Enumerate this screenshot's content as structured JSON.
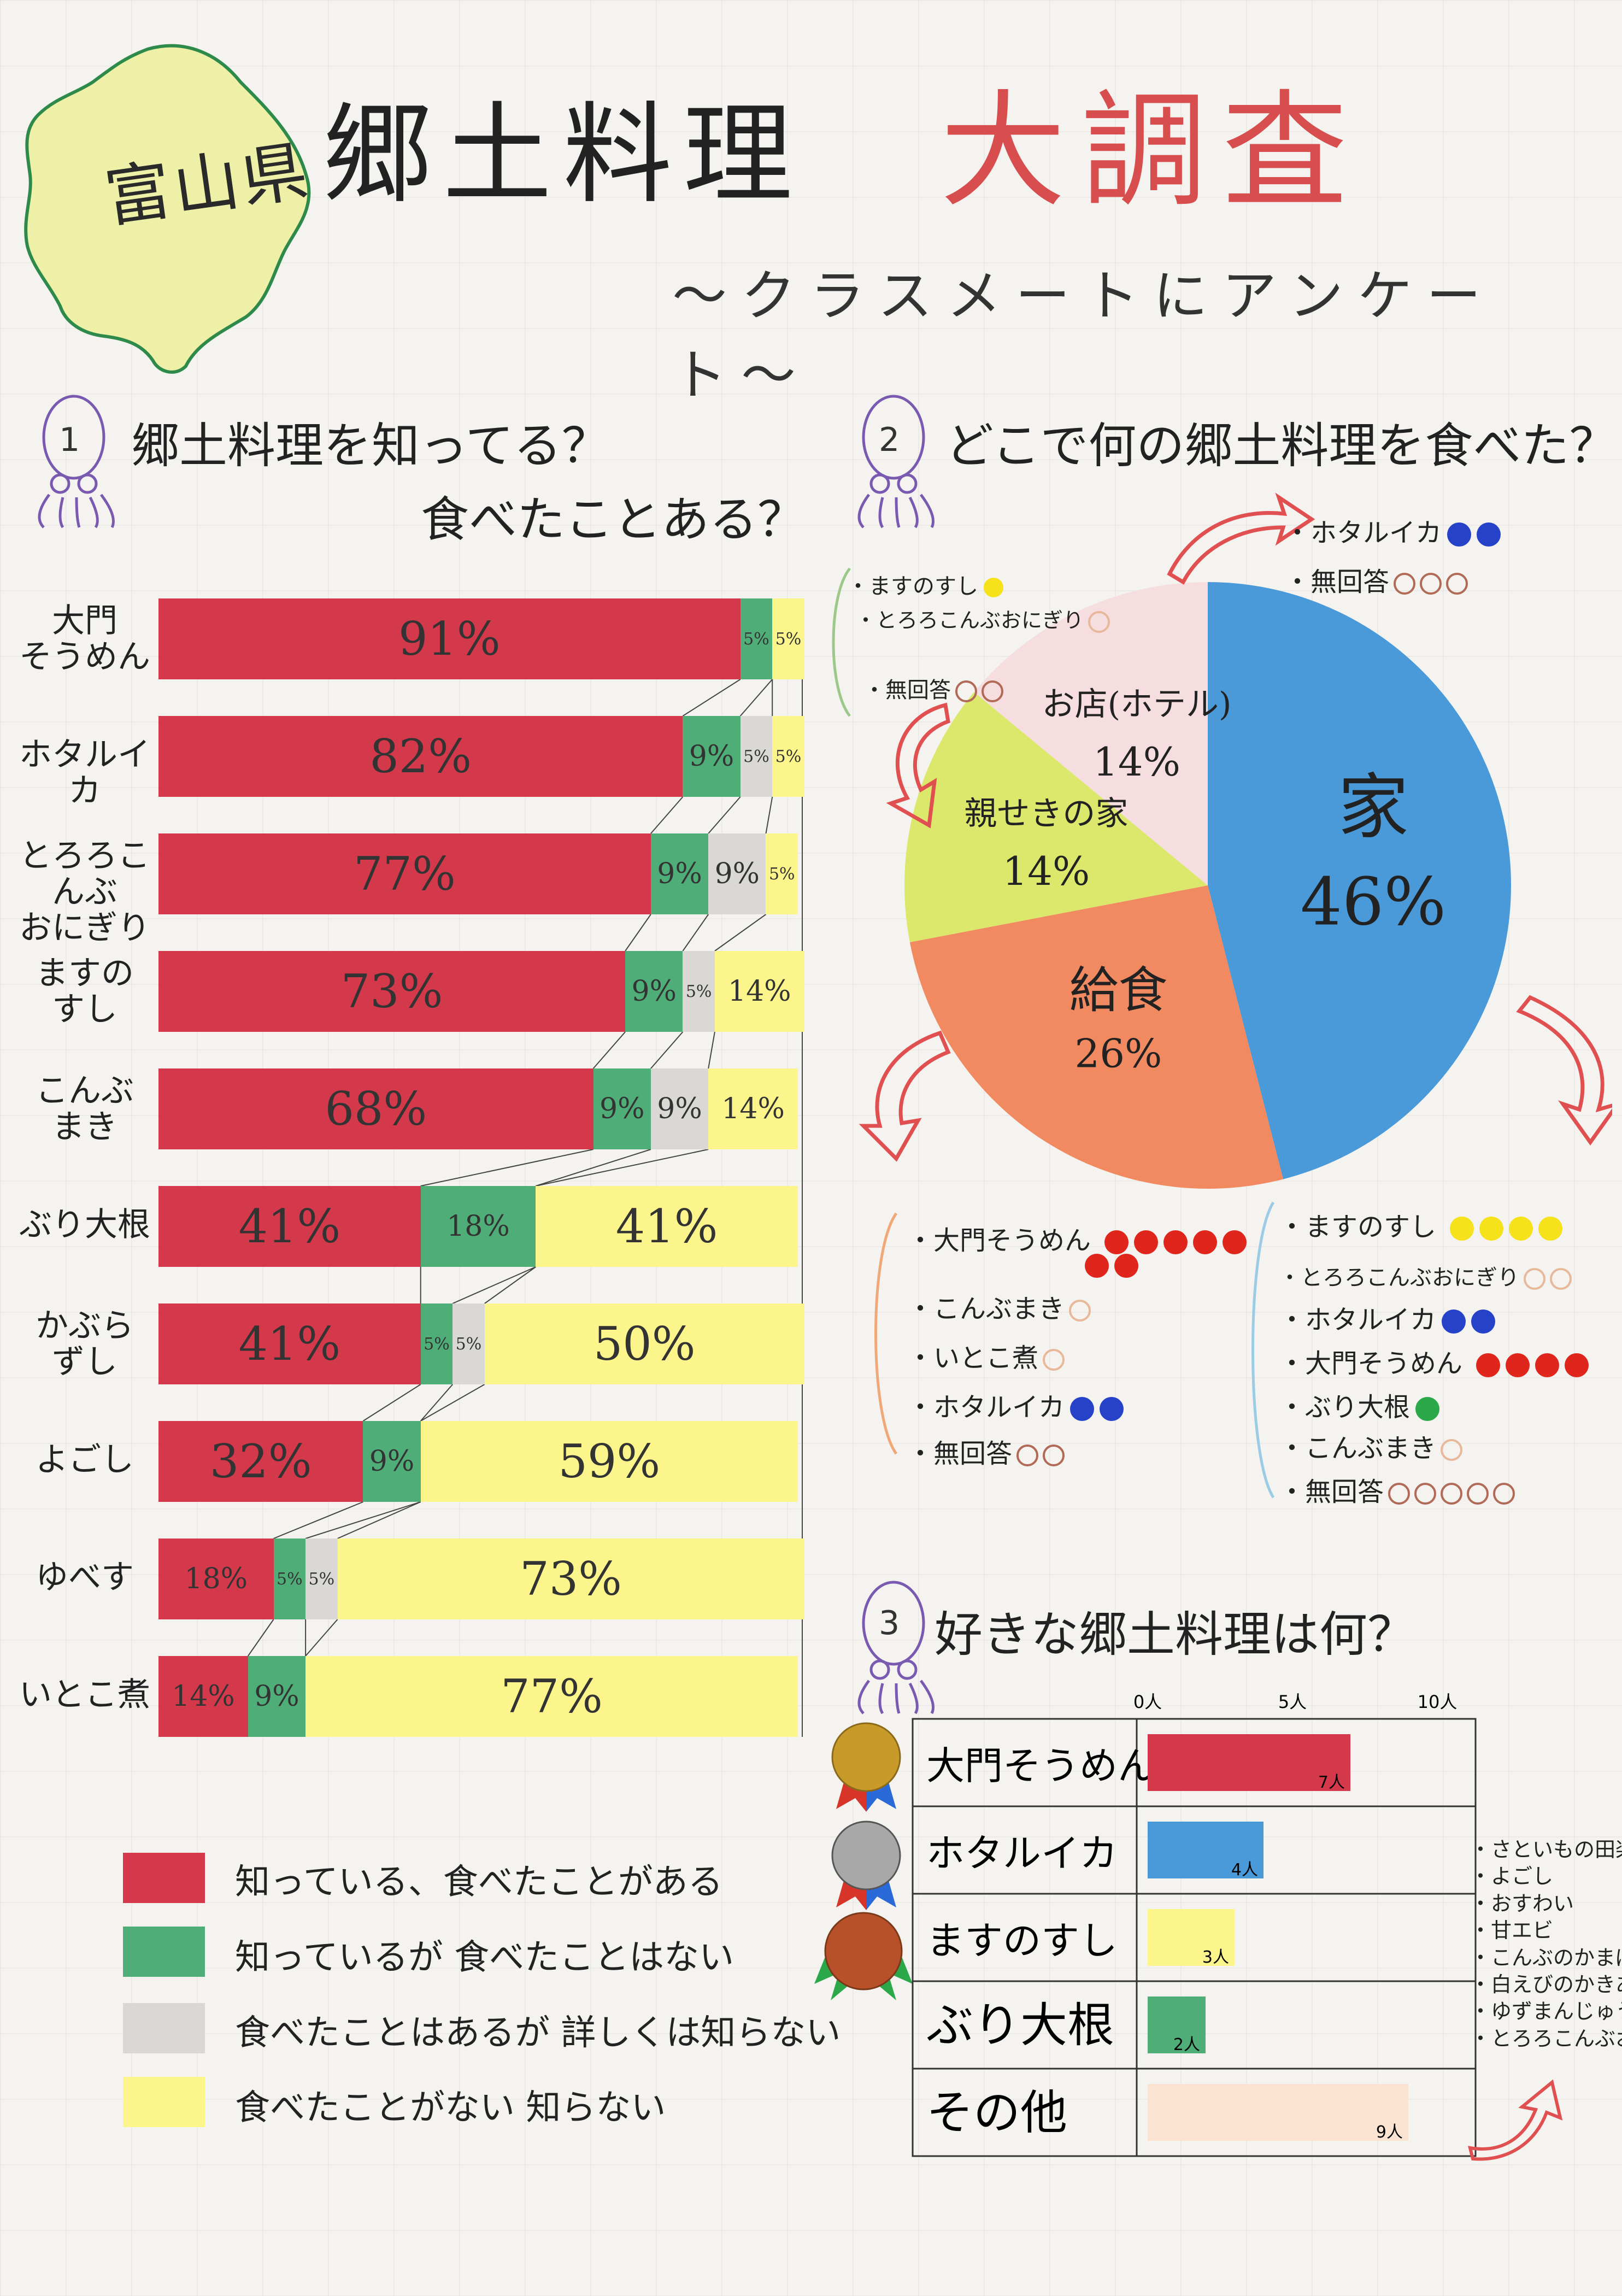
{
  "header": {
    "prefecture": "富山県",
    "title_black": "郷土料理",
    "title_red": "大調査",
    "subtitle": "〜クラスメートにアンケート〜"
  },
  "colors": {
    "known_eaten": "#d3394a",
    "known_not_eaten": "#4fae78",
    "eaten_not_detail": "#d9d8d4",
    "not_eaten_not_known": "#fbf58c",
    "home": "#4a9ad9",
    "school_lunch": "#f18a60",
    "relatives": "#dbe86c",
    "shop": "#f6dee0",
    "title_red": "#d84d4d"
  },
  "q1": {
    "number": "1",
    "title_line1": "郷土料理を知ってる？",
    "title_line2": "食べたことある？",
    "legend": [
      "知っている、食べたことがある",
      "知っているが 食べたことはない",
      "食べたことはあるが 詳しくは知らない",
      "食べたことがない 知らない"
    ]
  },
  "q2": {
    "number": "2",
    "title": "どこで何の郷土料理を食べた？",
    "notes": {
      "shop": {
        "items": [
          {
            "label": "・ホタルイカ",
            "dots": [
              "#2542c9",
              "#2542c9"
            ]
          },
          {
            "label": "・無回答",
            "rings": 3
          }
        ]
      },
      "relatives": {
        "items": [
          {
            "label": "・ますのすし",
            "dots": [
              "#f5e21a"
            ]
          },
          {
            "label": "・とろろこんぶおにぎり",
            "rings": 1
          },
          {
            "label": "・無回答",
            "rings": 2
          }
        ]
      },
      "lunch": {
        "items": [
          {
            "label": "・大門そうめん",
            "dots": [
              "#e0251c",
              "#e0251c",
              "#e0251c",
              "#e0251c",
              "#e0251c",
              "#e0251c",
              "#e0251c"
            ]
          },
          {
            "label": "・こんぶまき",
            "rings": 1
          },
          {
            "label": "・いとこ煮",
            "rings": 1
          },
          {
            "label": "・ホタルイカ",
            "dots": [
              "#2542c9",
              "#2542c9"
            ]
          },
          {
            "label": "・無回答",
            "rings": 2
          }
        ]
      },
      "home": {
        "items": [
          {
            "label": "・ますのすし",
            "dots": [
              "#f5e21a",
              "#f5e21a",
              "#f5e21a",
              "#f5e21a"
            ]
          },
          {
            "label": "・とろろこんぶおにぎり",
            "rings": 2
          },
          {
            "label": "・ホタルイカ",
            "dots": [
              "#2542c9",
              "#2542c9"
            ]
          },
          {
            "label": "・大門そうめん",
            "dots": [
              "#e0251c",
              "#e0251c",
              "#e0251c",
              "#e0251c"
            ]
          },
          {
            "label": "・ぶり大根",
            "dots": [
              "#2aa84a"
            ]
          },
          {
            "label": "・こんぶまき",
            "rings": 1
          },
          {
            "label": "・無回答",
            "rings": 5
          }
        ]
      }
    }
  },
  "q3": {
    "number": "3",
    "title": "好きな郷土料理は何？",
    "other_list": [
      "・さといもの田楽",
      "・よごし",
      "・おすわい",
      "・甘エビ",
      "・こんぶのかまぼこ",
      "・白えびのかきあげ",
      "・ゆずまんじゅう",
      "・とろろこんぶおにぎり"
    ]
  },
  "chart_data": [
    {
      "type": "bar",
      "orientation": "horizontal-stacked-100",
      "categories": [
        "大門そうめん",
        "ホタルイカ",
        "とろろこんぶおにぎり",
        "ますのすし",
        "こんぶまき",
        "ぶり大根",
        "かぶらずし",
        "よごし",
        "ゆべす",
        "いとこ煮"
      ],
      "category_display": [
        "大門\nそうめん",
        "ホタルイカ",
        "とろろこんぶ\nおにぎり",
        "ますの\nすし",
        "こんぶ\nまき",
        "ぶり大根",
        "かぶら\nずし",
        "よごし",
        "ゆべす",
        "いとこ煮"
      ],
      "series": [
        {
          "name": "知っている、食べたことがある",
          "values": [
            91,
            82,
            77,
            73,
            68,
            41,
            41,
            32,
            18,
            14
          ]
        },
        {
          "name": "知っているが 食べたことはない",
          "values": [
            5,
            9,
            9,
            9,
            9,
            18,
            5,
            9,
            5,
            9
          ]
        },
        {
          "name": "食べたことはあるが 詳しくは知らない",
          "values": [
            0,
            5,
            9,
            5,
            9,
            0,
            5,
            0,
            5,
            0
          ]
        },
        {
          "name": "食べたことがない 知らない",
          "values": [
            5,
            5,
            5,
            14,
            14,
            41,
            50,
            59,
            73,
            77
          ]
        }
      ],
      "unit": "%"
    },
    {
      "type": "pie",
      "slices": [
        {
          "label": "家",
          "value": 46
        },
        {
          "label": "給食",
          "value": 26
        },
        {
          "label": "親せきの家",
          "value": 14
        },
        {
          "label": "お店(ホテル)",
          "value": 14
        }
      ],
      "unit": "%"
    },
    {
      "type": "bar",
      "orientation": "horizontal",
      "categories": [
        "大門そうめん",
        "ホタルイカ",
        "ますのすし",
        "ぶり大根",
        "その他"
      ],
      "values": [
        7,
        4,
        3,
        2,
        9
      ],
      "value_labels": [
        "7人",
        "4人",
        "3人",
        "2人",
        "9人"
      ],
      "axis_ticks": [
        "0人",
        "5人",
        "10人"
      ],
      "xlim": [
        0,
        10
      ],
      "bar_colors": [
        "#d3394a",
        "#4a9ad9",
        "#fbf58c",
        "#4fae78",
        "#fbe3d2"
      ]
    }
  ]
}
